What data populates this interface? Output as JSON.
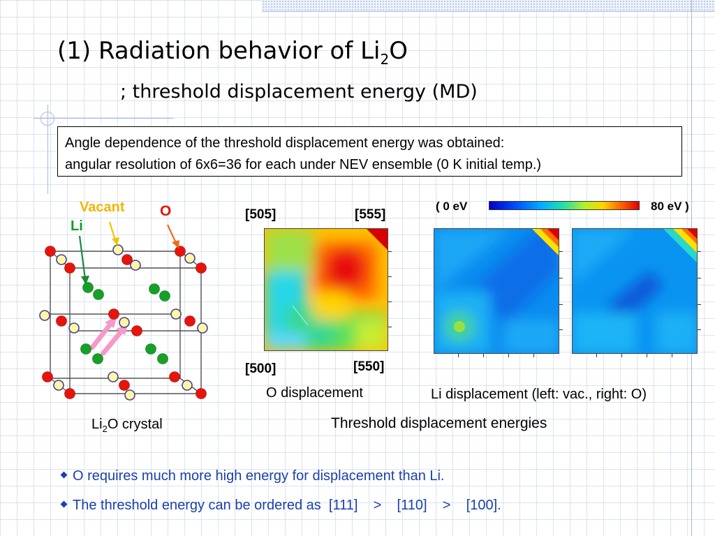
{
  "slide": {
    "title_main": "(1) Radiation behavior of Li",
    "title_sub": "2",
    "title_end": "O",
    "subtitle": "; threshold displacement energy (MD)"
  },
  "info_box": {
    "line1": "Angle dependence of the threshold displacement energy was obtained:",
    "line2": "angular resolution of 6x6=36 for each under NEV ensemble (0 K initial temp.)"
  },
  "crystal": {
    "label_vacant": "Vacant",
    "label_o": "O",
    "label_li": "Li",
    "caption_main": "Li",
    "caption_sub": "2",
    "caption_end": "O crystal",
    "colors": {
      "vacant": "#f5c400",
      "oxygen": "#e8140c",
      "lithium": "#16a028",
      "vacant_label": "#f2b600",
      "o_label": "#e8140c",
      "li_label": "#129a24",
      "arrow_vacant": "#f2c400",
      "arrow_o": "#ee6a1a",
      "arrow_li": "#1a8a3a",
      "path_arrow": "#f59ac8"
    }
  },
  "o_map": {
    "corner_tl": "[505]",
    "corner_tr": "[555]",
    "corner_bl": "[500]",
    "corner_br": "[550]",
    "caption": "O displacement"
  },
  "li_maps": {
    "scale_min": "( 0 eV",
    "scale_max": "80 eV )",
    "caption": "Li displacement (left: vac., right: O)"
  },
  "figure_caption": "Threshold displacement energies",
  "bullets": [
    "O requires much more high energy for displacement than Li.",
    "The threshold energy can be ordered as  [111]    >    [110]    >    [100]."
  ]
}
